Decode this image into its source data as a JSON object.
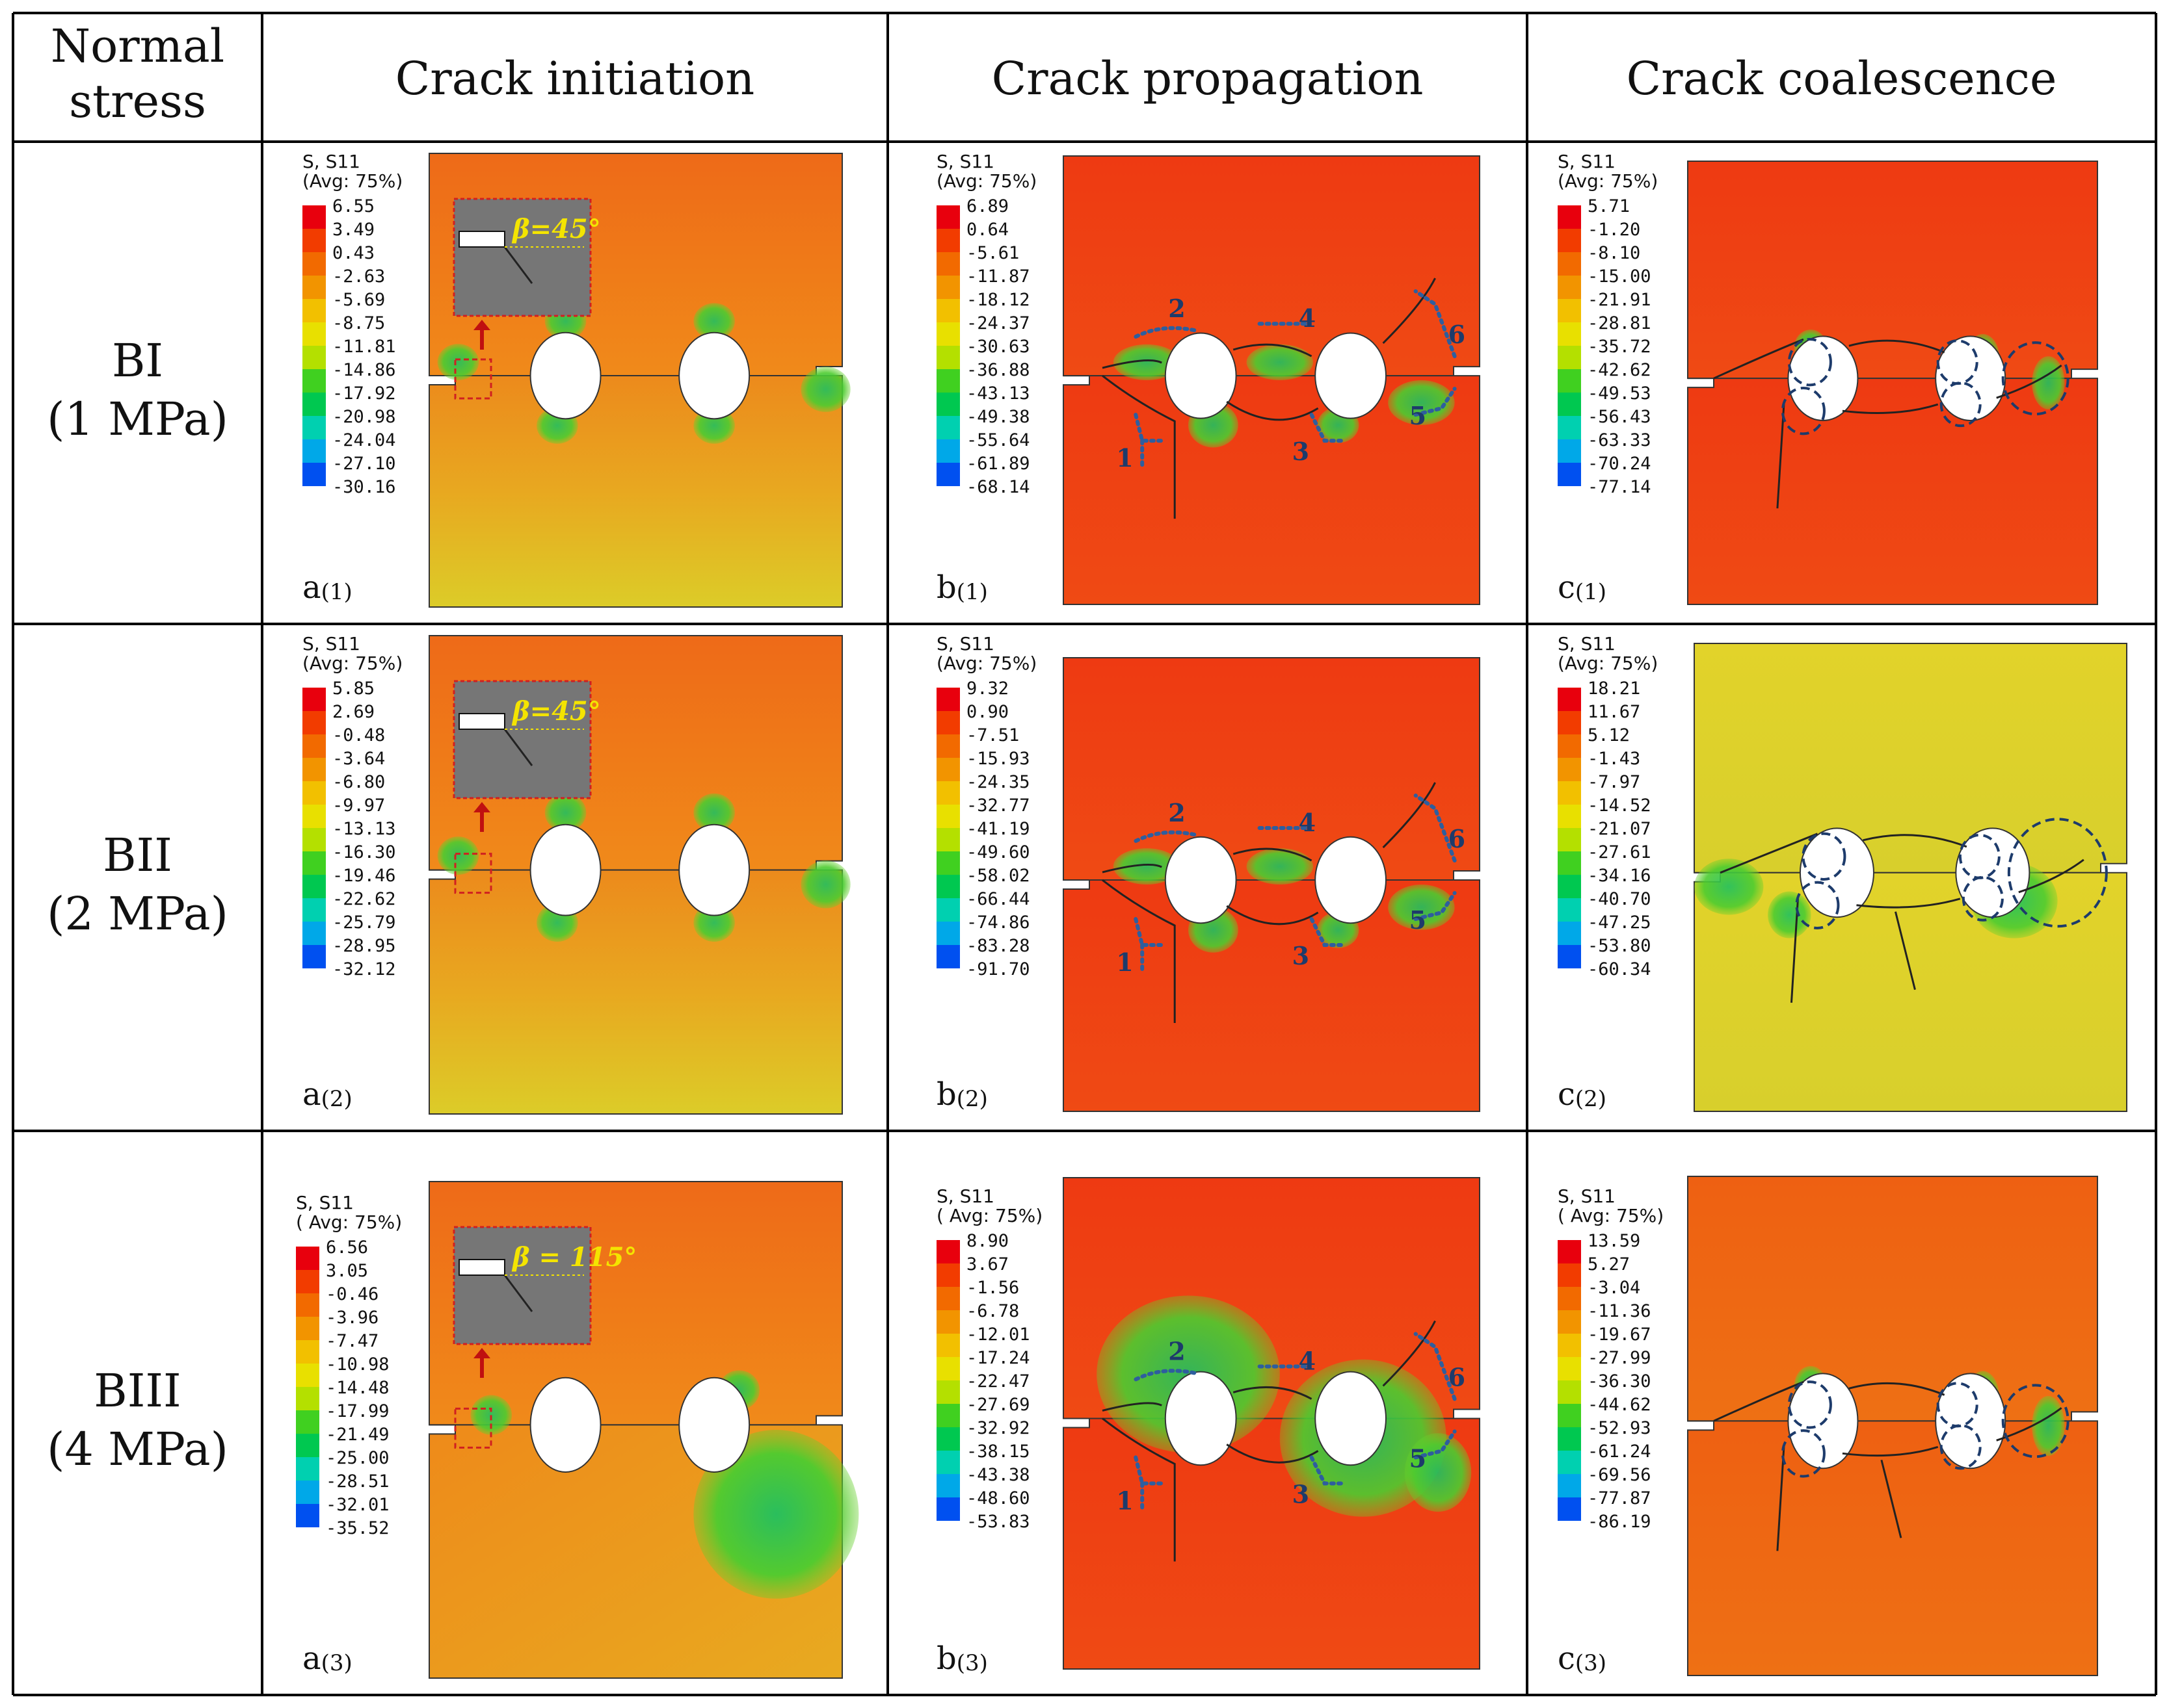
{
  "table": {
    "header": {
      "col0": [
        "Normal",
        "stress"
      ],
      "col1": "Crack initiation",
      "col2": "Crack propagation",
      "col3": "Crack coalescence"
    },
    "rows": [
      {
        "label": "BI",
        "stress": "(1 MPa)",
        "legend_title": [
          "S, S11",
          "(Avg: 75%)"
        ],
        "init_angle": "β=45°",
        "legends": [
          [
            "6.55",
            "3.49",
            "0.43",
            "-2.63",
            "-5.69",
            "-8.75",
            "-11.81",
            "-14.86",
            "-17.92",
            "-20.98",
            "-24.04",
            "-27.10",
            "-30.16"
          ],
          [
            "6.89",
            "0.64",
            "-5.61",
            "-11.87",
            "-18.12",
            "-24.37",
            "-30.63",
            "-36.88",
            "-43.13",
            "-49.38",
            "-55.64",
            "-61.89",
            "-68.14"
          ],
          [
            "5.71",
            "-1.20",
            "-8.10",
            "-15.00",
            "-21.91",
            "-28.81",
            "-35.72",
            "-42.62",
            "-49.53",
            "-56.43",
            "-63.33",
            "-70.24",
            "-77.14"
          ]
        ],
        "panels": [
          {
            "letter": "a",
            "index": "(1)"
          },
          {
            "letter": "b",
            "index": "(1)"
          },
          {
            "letter": "c",
            "index": "(1)"
          }
        ],
        "crack_numbers": [
          "1",
          "2",
          "3",
          "4",
          "5",
          "6"
        ]
      },
      {
        "label": "BII",
        "stress": "(2 MPa)",
        "legend_title": [
          "S, S11",
          "(Avg: 75%)"
        ],
        "init_angle": "β=45°",
        "legends": [
          [
            "5.85",
            "2.69",
            "-0.48",
            "-3.64",
            "-6.80",
            "-9.97",
            "-13.13",
            "-16.30",
            "-19.46",
            "-22.62",
            "-25.79",
            "-28.95",
            "-32.12"
          ],
          [
            "9.32",
            "0.90",
            "-7.51",
            "-15.93",
            "-24.35",
            "-32.77",
            "-41.19",
            "-49.60",
            "-58.02",
            "-66.44",
            "-74.86",
            "-83.28",
            "-91.70"
          ],
          [
            "18.21",
            "11.67",
            "5.12",
            "-1.43",
            "-7.97",
            "-14.52",
            "-21.07",
            "-27.61",
            "-34.16",
            "-40.70",
            "-47.25",
            "-53.80",
            "-60.34"
          ]
        ],
        "panels": [
          {
            "letter": "a",
            "index": "(2)"
          },
          {
            "letter": "b",
            "index": "(2)"
          },
          {
            "letter": "c",
            "index": "(2)"
          }
        ],
        "crack_numbers": [
          "1",
          "2",
          "3",
          "4",
          "5",
          "6"
        ]
      },
      {
        "label": "BIII",
        "stress": "(4 MPa)",
        "legend_title": [
          "S, S11",
          "( Avg: 75%)"
        ],
        "init_angle": "β = 115°",
        "legends": [
          [
            "6.56",
            "3.05",
            "-0.46",
            "-3.96",
            "-7.47",
            "-10.98",
            "-14.48",
            "-17.99",
            "-21.49",
            "-25.00",
            "-28.51",
            "-32.01",
            "-35.52"
          ],
          [
            "8.90",
            "3.67",
            "-1.56",
            "-6.78",
            "-12.01",
            "-17.24",
            "-22.47",
            "-27.69",
            "-32.92",
            "-38.15",
            "-43.38",
            "-48.60",
            "-53.83"
          ],
          [
            "13.59",
            "5.27",
            "-3.04",
            "-11.36",
            "-19.67",
            "-27.99",
            "-36.30",
            "-44.62",
            "-52.93",
            "-61.24",
            "-69.56",
            "-77.87",
            "-86.19"
          ]
        ],
        "panels": [
          {
            "letter": "a",
            "index": "(3)"
          },
          {
            "letter": "b",
            "index": "(3)"
          },
          {
            "letter": "c",
            "index": "(3)"
          }
        ],
        "crack_numbers": [
          "1",
          "2",
          "3",
          "4",
          "5",
          "6"
        ]
      }
    ]
  },
  "colors": {
    "legend_scale": [
      "#e8000d",
      "#f23c00",
      "#f26a00",
      "#f29400",
      "#f2c000",
      "#e8e000",
      "#b4e000",
      "#40d020",
      "#00c850",
      "#00d0b0",
      "#00a8e8",
      "#0050f0",
      "#0010e0"
    ],
    "field_red": "#ee3a12",
    "field_orange": "#ec6a14",
    "field_yellow": "#dcd428",
    "field_green": "#3cc83a",
    "arrow": "#c01010",
    "crack_arrow": "#2e5e9e"
  }
}
